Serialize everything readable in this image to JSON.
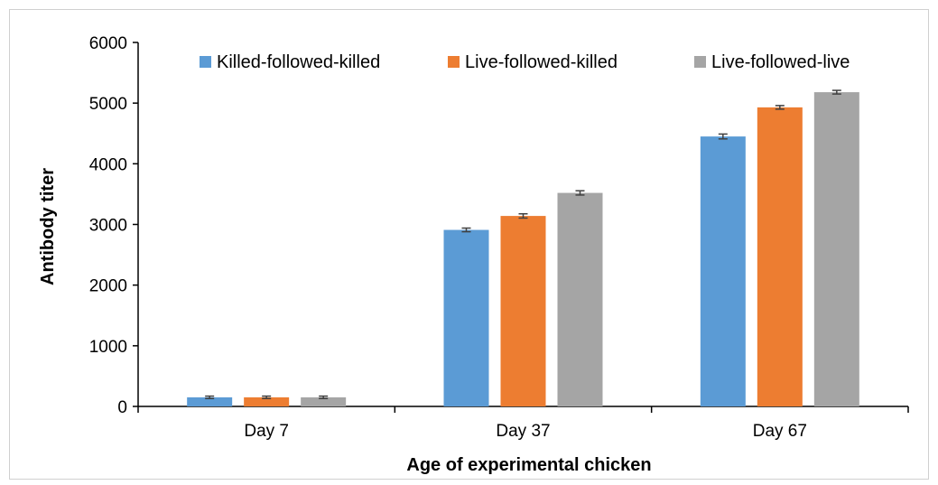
{
  "chart_data": {
    "type": "bar",
    "title": "",
    "xlabel": "Age of experimental chicken",
    "ylabel": "Antibody titer",
    "categories": [
      "Day 7",
      "Day 37",
      "Day 67"
    ],
    "ylim": [
      0,
      6000
    ],
    "yticks": [
      0,
      1000,
      2000,
      3000,
      4000,
      5000,
      6000
    ],
    "ytick_labels": [
      "0",
      "1000",
      "2000",
      "3000",
      "4000",
      "5000",
      "6000"
    ],
    "grid": false,
    "legend_position": "top",
    "error_bars": true,
    "series": [
      {
        "name": "Killed-followed-killed",
        "color": "#5b9bd5",
        "values": [
          150,
          2910,
          4450
        ],
        "errors": [
          20,
          30,
          40
        ]
      },
      {
        "name": "Live-followed-killed",
        "color": "#ed7d31",
        "values": [
          150,
          3140,
          4930
        ],
        "errors": [
          20,
          35,
          30
        ]
      },
      {
        "name": "Live-followed-live",
        "color": "#a5a5a5",
        "values": [
          150,
          3520,
          5180
        ],
        "errors": [
          20,
          35,
          30
        ]
      }
    ]
  }
}
